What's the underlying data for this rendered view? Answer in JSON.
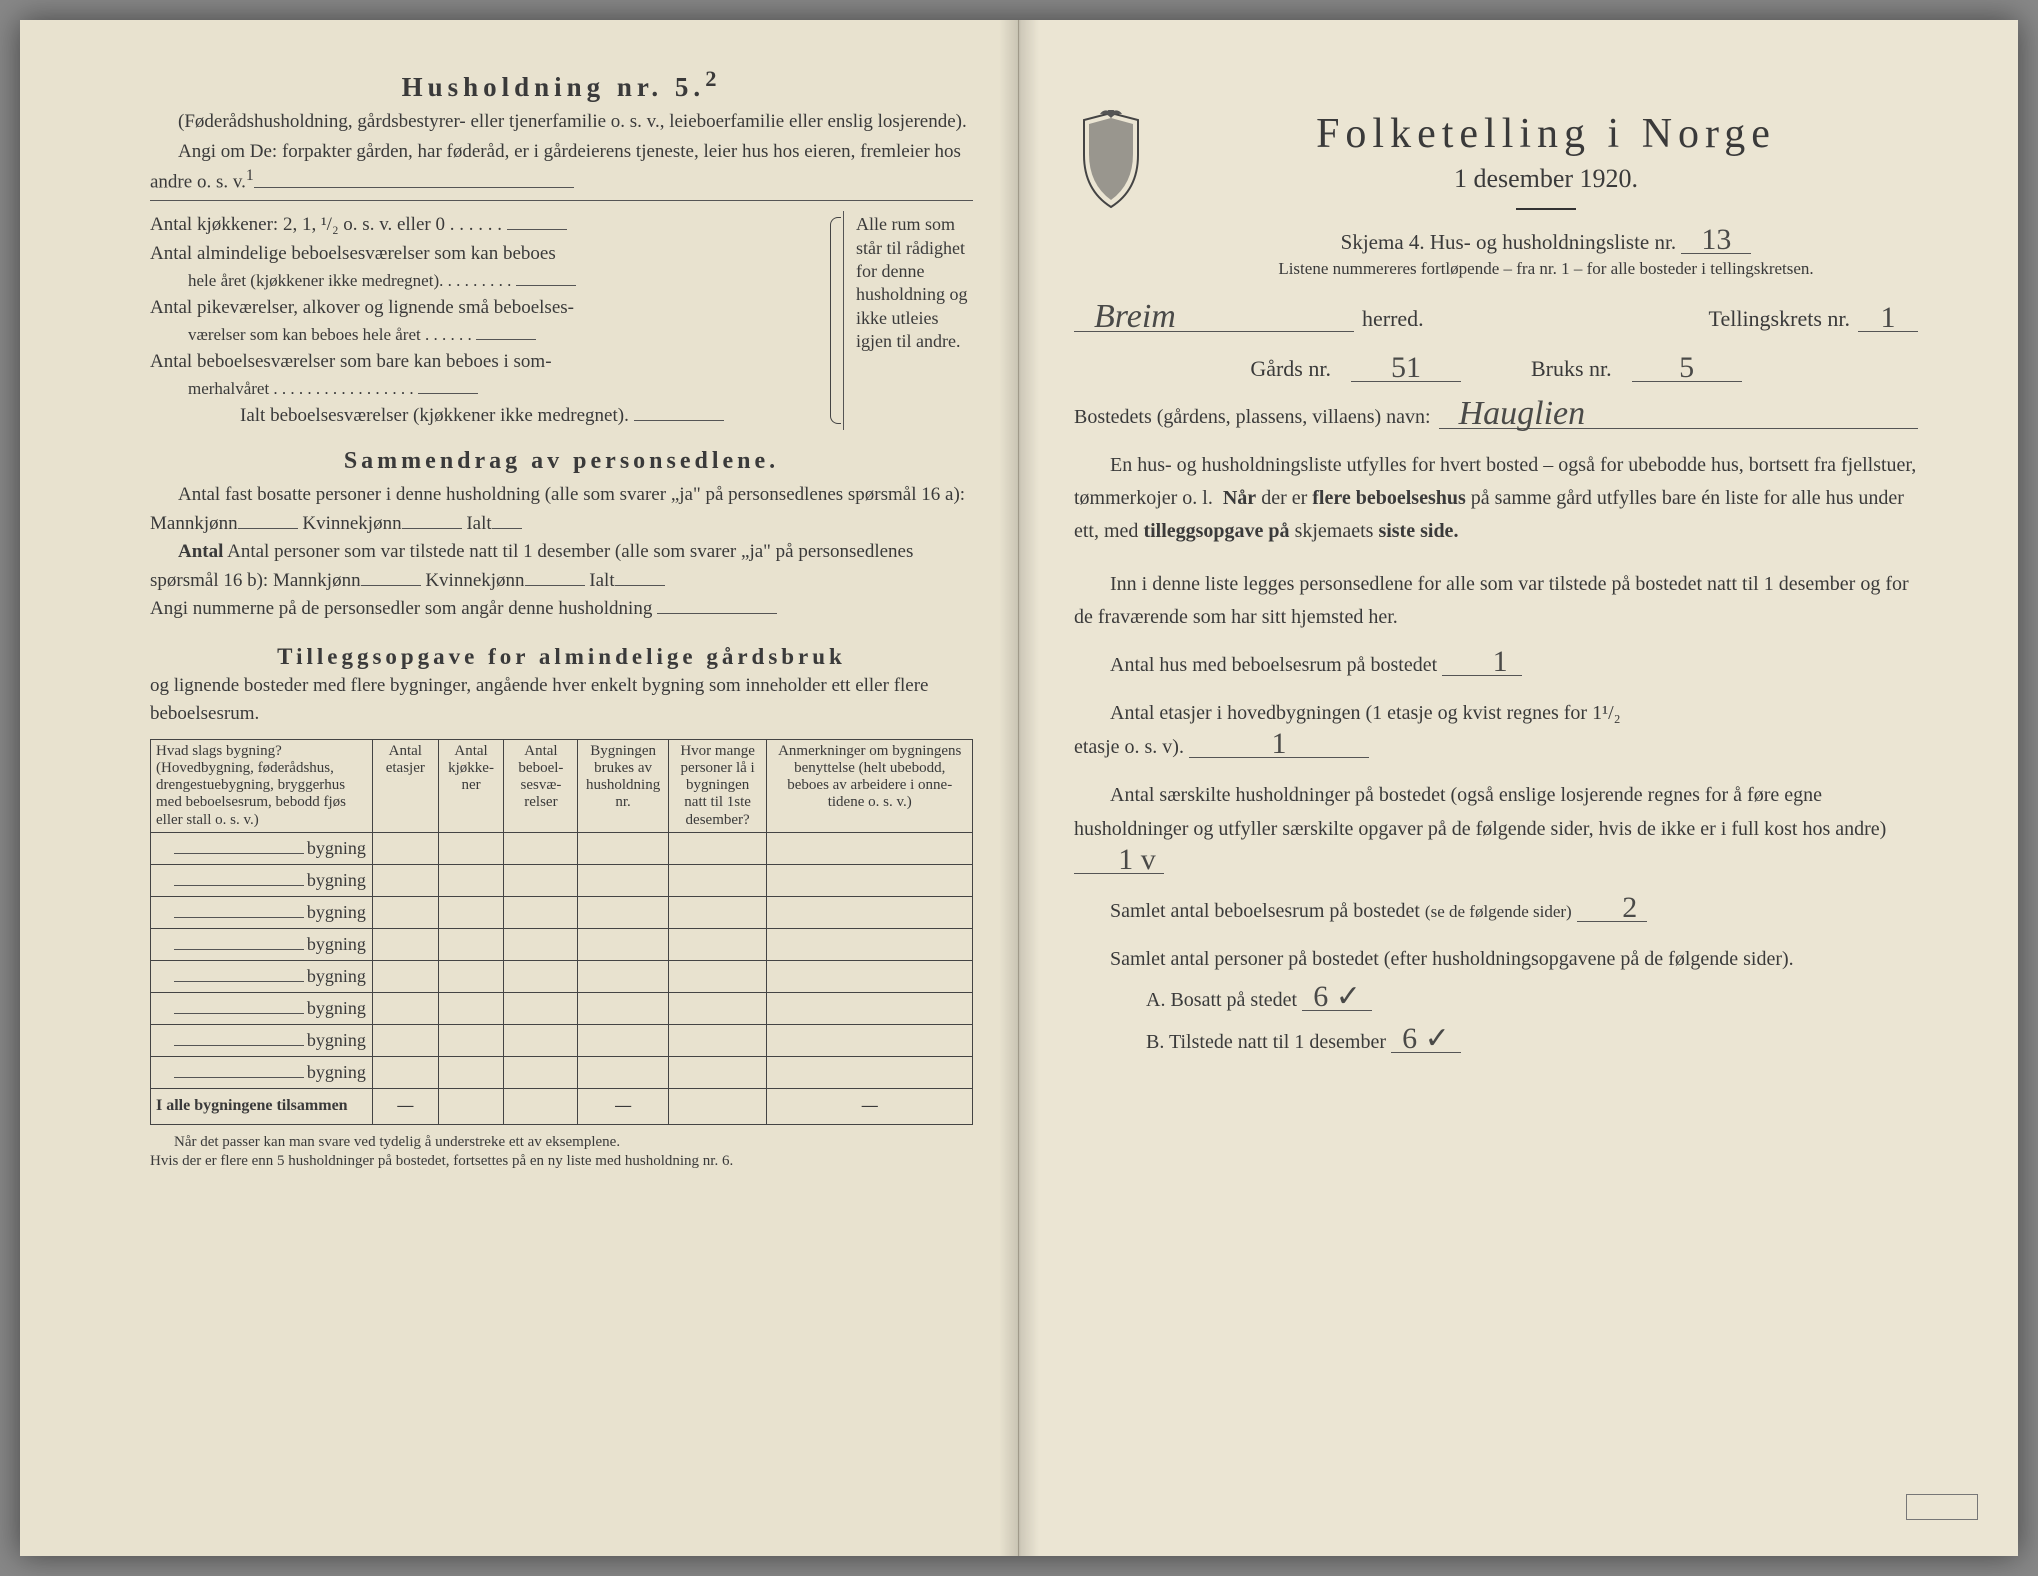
{
  "left": {
    "title": "Husholdning nr. 5.",
    "title_sup": "2",
    "sub1": "(Føderådshusholdning, gårdsbestyrer- eller tjenerfamilie o. s. v., leieboerfamilie eller enslig losjerende).",
    "sub2": "Angi om De: forpakter gården, har føderåd, er i gårdeierens tjeneste, leier hus hos eieren, fremleier hos andre o. s. v.",
    "kitchens_line": "Antal kjøkkener: 2, 1, ¹/₂ o. s. v. eller 0 . . . . . .",
    "rooms1a": "Antal almindelige beboelsesværelser som kan beboes",
    "rooms1b": "hele året (kjøkkener ikke medregnet). . . . . . . . .",
    "rooms2a": "Antal pikeværelser, alkover og lignende små beboelses-",
    "rooms2b": "værelser som kan beboes hele året . . . . . .",
    "rooms3a": "Antal beboelsesværelser som bare kan beboes i som-",
    "rooms3b": "merhalvåret . . . . . . . . . . . . . . . . .",
    "total_rooms": "Ialt beboelsesværelser (kjøkkener ikke medregnet).",
    "right_note": "Alle rum som står til rådighet for denne hushold­ning og ikke ut­leies igjen til andre.",
    "summary_head": "Sammendrag av personsedlene.",
    "summary1": "Antal fast bosatte personer i denne husholdning (alle som svarer „ja\" på personsedlenes spørsmål 16 a): Mannkjønn",
    "kvinne": "Kvinnekjønn",
    "ialt": "Ialt",
    "summary2": "Antal personer som var tilstede natt til 1 desember (alle som svarer „ja\" på personsedlenes spørsmål 16 b): Mannkjønn",
    "summary3": "Angi nummerne på de personsedler som angår denne husholdning",
    "addendum_head": "Tilleggsopgave for almindelige gårdsbruk",
    "addendum_sub": "og lignende bosteder med flere bygninger, angående hver enkelt bygning som inneholder ett eller flere beboelsesrum.",
    "table": {
      "headers": [
        "Hvad slags bygning?\n(Hovedbygning, føderådshus, drengestuebygning, bryggerhus med beboelsesrum, bebodd fjøs eller stall o. s. v.)",
        "Antal etasjer",
        "Antal kjøkke­ner",
        "Antal beboel­sesvæ­relser",
        "Bygningen brukes av hushold­ning nr.",
        "Hvor mange personer lå i bygningen natt til 1ste desember?",
        "Anmerkninger om bygnin­gens benyttelse (helt ubebodd, beboes av arbeidere i onne­tidene o. s. v.)"
      ],
      "row_label": "bygning",
      "row_count": 8,
      "total_label": "I alle bygningene tilsammen",
      "dashes": [
        "—",
        "",
        "",
        "—",
        "",
        "—"
      ]
    },
    "footnote": "Når det passer kan man svare ved tydelig å understreke ett av eksemplene.\nHvis der er flere enn 5 husholdninger på bostedet, fortsettes på en ny liste med husholdning nr. 6."
  },
  "right": {
    "main_title": "Folketelling i Norge",
    "date": "1 desember 1920.",
    "skjema": "Skjema 4.  Hus- og husholdningsliste nr.",
    "skjema_nr": "13",
    "list_note": "Listene nummereres fortløpende – fra nr. 1 – for alle bosteder i tellingskretsen.",
    "herred_label": "herred.",
    "herred_val": "Breim",
    "krets_label": "Tellingskrets nr.",
    "krets_val": "1",
    "gards_label": "Gårds nr.",
    "gards_val": "51",
    "bruks_label": "Bruks nr.",
    "bruks_val": "5",
    "bosted_label": "Bostedets (gårdens, plassens, villaens) navn:",
    "bosted_val": "Hauglien",
    "para1": "En hus- og husholdningsliste utfylles for hvert bosted – også for ubebodde hus, bortsett fra fjellstuer, tømmerkojer o. l.  Når der er flere beboelseshus på samme gård utfylles bare én liste for alle hus under ett, med tilleggsopgave på skjemaets siste side.",
    "para2": "Inn i denne liste legges personsedlene for alle som var tilstede på bostedet natt til 1 desember og for de fraværende som har sitt hjemsted her.",
    "q1": "Antal hus med beboelsesrum på bostedet",
    "q1_val": "1",
    "q2a": "Antal etasjer i hovedbygningen (1 etasje og kvist regnes for 1¹/₂",
    "q2b": "etasje o. s. v).",
    "q2_val": "1",
    "q3": "Antal særskilte husholdninger på bostedet (også enslige losjerende regnes for å føre egne husholdninger og utfyller særskilte opgaver på de følgende sider, hvis de ikke er i full kost hos andre)",
    "q3_val": "1 v",
    "q4": "Samlet antal beboelsesrum på bostedet",
    "q4_note": "(se de følgende sider)",
    "q4_val": "2",
    "q5": "Samlet antal personer på bostedet (efter husholdningsopgavene på de følgende sider).",
    "qa": "A.  Bosatt på stedet",
    "qa_val": "6 ✓",
    "qb": "B.  Tilstede natt til 1 desember",
    "qb_val": "6 ✓"
  }
}
